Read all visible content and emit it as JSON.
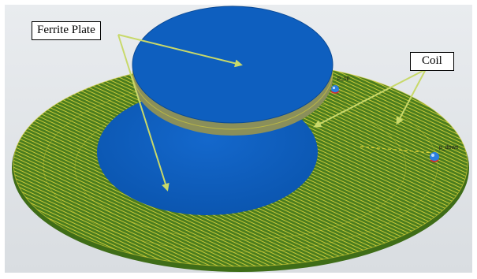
{
  "labels": {
    "ferrite_plate": "Ferrite Plate",
    "coil": "Coil",
    "port_up": "p_up",
    "port_down": "p_down"
  },
  "colors": {
    "background": "#ffffff",
    "backdrop": "#e3e6ea",
    "coil_green": "#4a7a1c",
    "coil_yellow": "#d8d23a",
    "ferrite_blue": "#0e5fbf",
    "ferrite_blue_dark": "#0a4a96",
    "arrow": "#c8d96a",
    "port_ball": "#2b7fe0"
  },
  "icons": {
    "port_marker": "sphere-port-icon"
  }
}
